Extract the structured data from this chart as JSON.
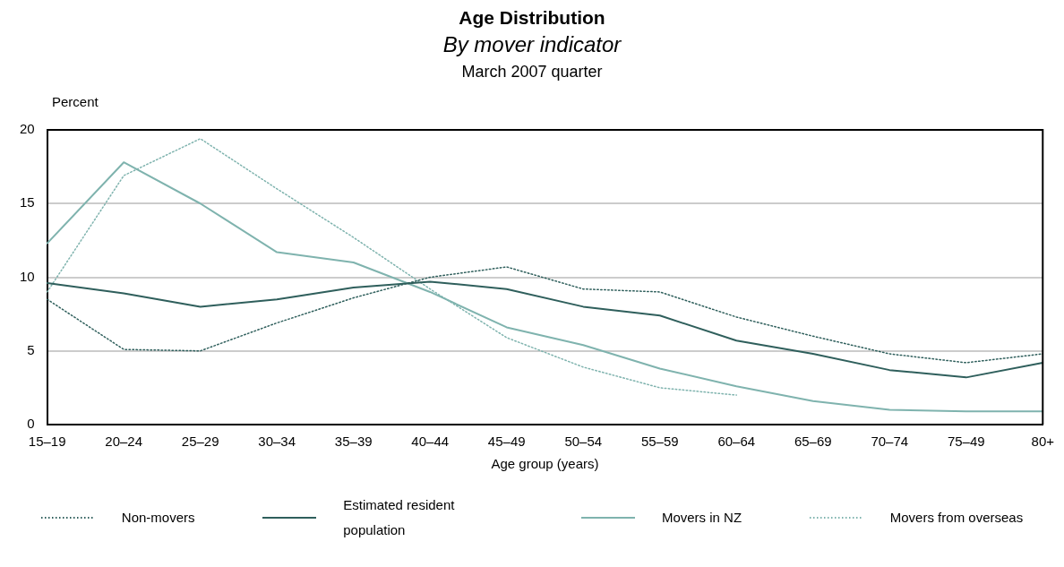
{
  "chart_data": {
    "type": "line",
    "title": "Age Distribution",
    "subtitle": "By mover indicator",
    "annotations": [
      "March 2007 quarter"
    ],
    "xlabel": "Age group (years)",
    "ylabel": "Percent",
    "categories": [
      "15–19",
      "20–24",
      "25–29",
      "30–34",
      "35–39",
      "40–44",
      "45–49",
      "50–54",
      "55–59",
      "60–64",
      "65–69",
      "70–74",
      "75–49",
      "80+"
    ],
    "ylim": [
      0,
      20
    ],
    "yticks": [
      0,
      5,
      10,
      15,
      20
    ],
    "grid": "y",
    "legend": "bottom",
    "marker": "none",
    "series": [
      {
        "name": "Non-movers",
        "color": "#2f5f5c",
        "line_style": "dotted",
        "values": [
          8.5,
          5.1,
          5.0,
          6.9,
          8.6,
          10.0,
          10.7,
          9.2,
          9.0,
          7.3,
          6.0,
          4.8,
          4.2,
          4.8
        ]
      },
      {
        "name": "Estimated resident population",
        "color": "#2f5f5c",
        "line_style": "solid",
        "values": [
          9.6,
          8.9,
          8.0,
          8.5,
          9.3,
          9.7,
          9.2,
          8.0,
          7.4,
          5.7,
          4.8,
          3.7,
          3.2,
          4.2
        ]
      },
      {
        "name": "Movers in NZ",
        "color": "#7fb3ae",
        "line_style": "solid",
        "values": [
          12.3,
          17.8,
          15.0,
          11.7,
          11.0,
          9.0,
          6.6,
          5.4,
          3.8,
          2.6,
          1.6,
          1.0,
          0.9,
          0.9
        ]
      },
      {
        "name": "Movers from overseas",
        "color": "#7fb3ae",
        "line_style": "dotted",
        "values": [
          9.0,
          16.9,
          19.4,
          16.0,
          12.7,
          9.2,
          5.9,
          3.9,
          2.5,
          2.0,
          null,
          null,
          null,
          null
        ]
      }
    ]
  }
}
